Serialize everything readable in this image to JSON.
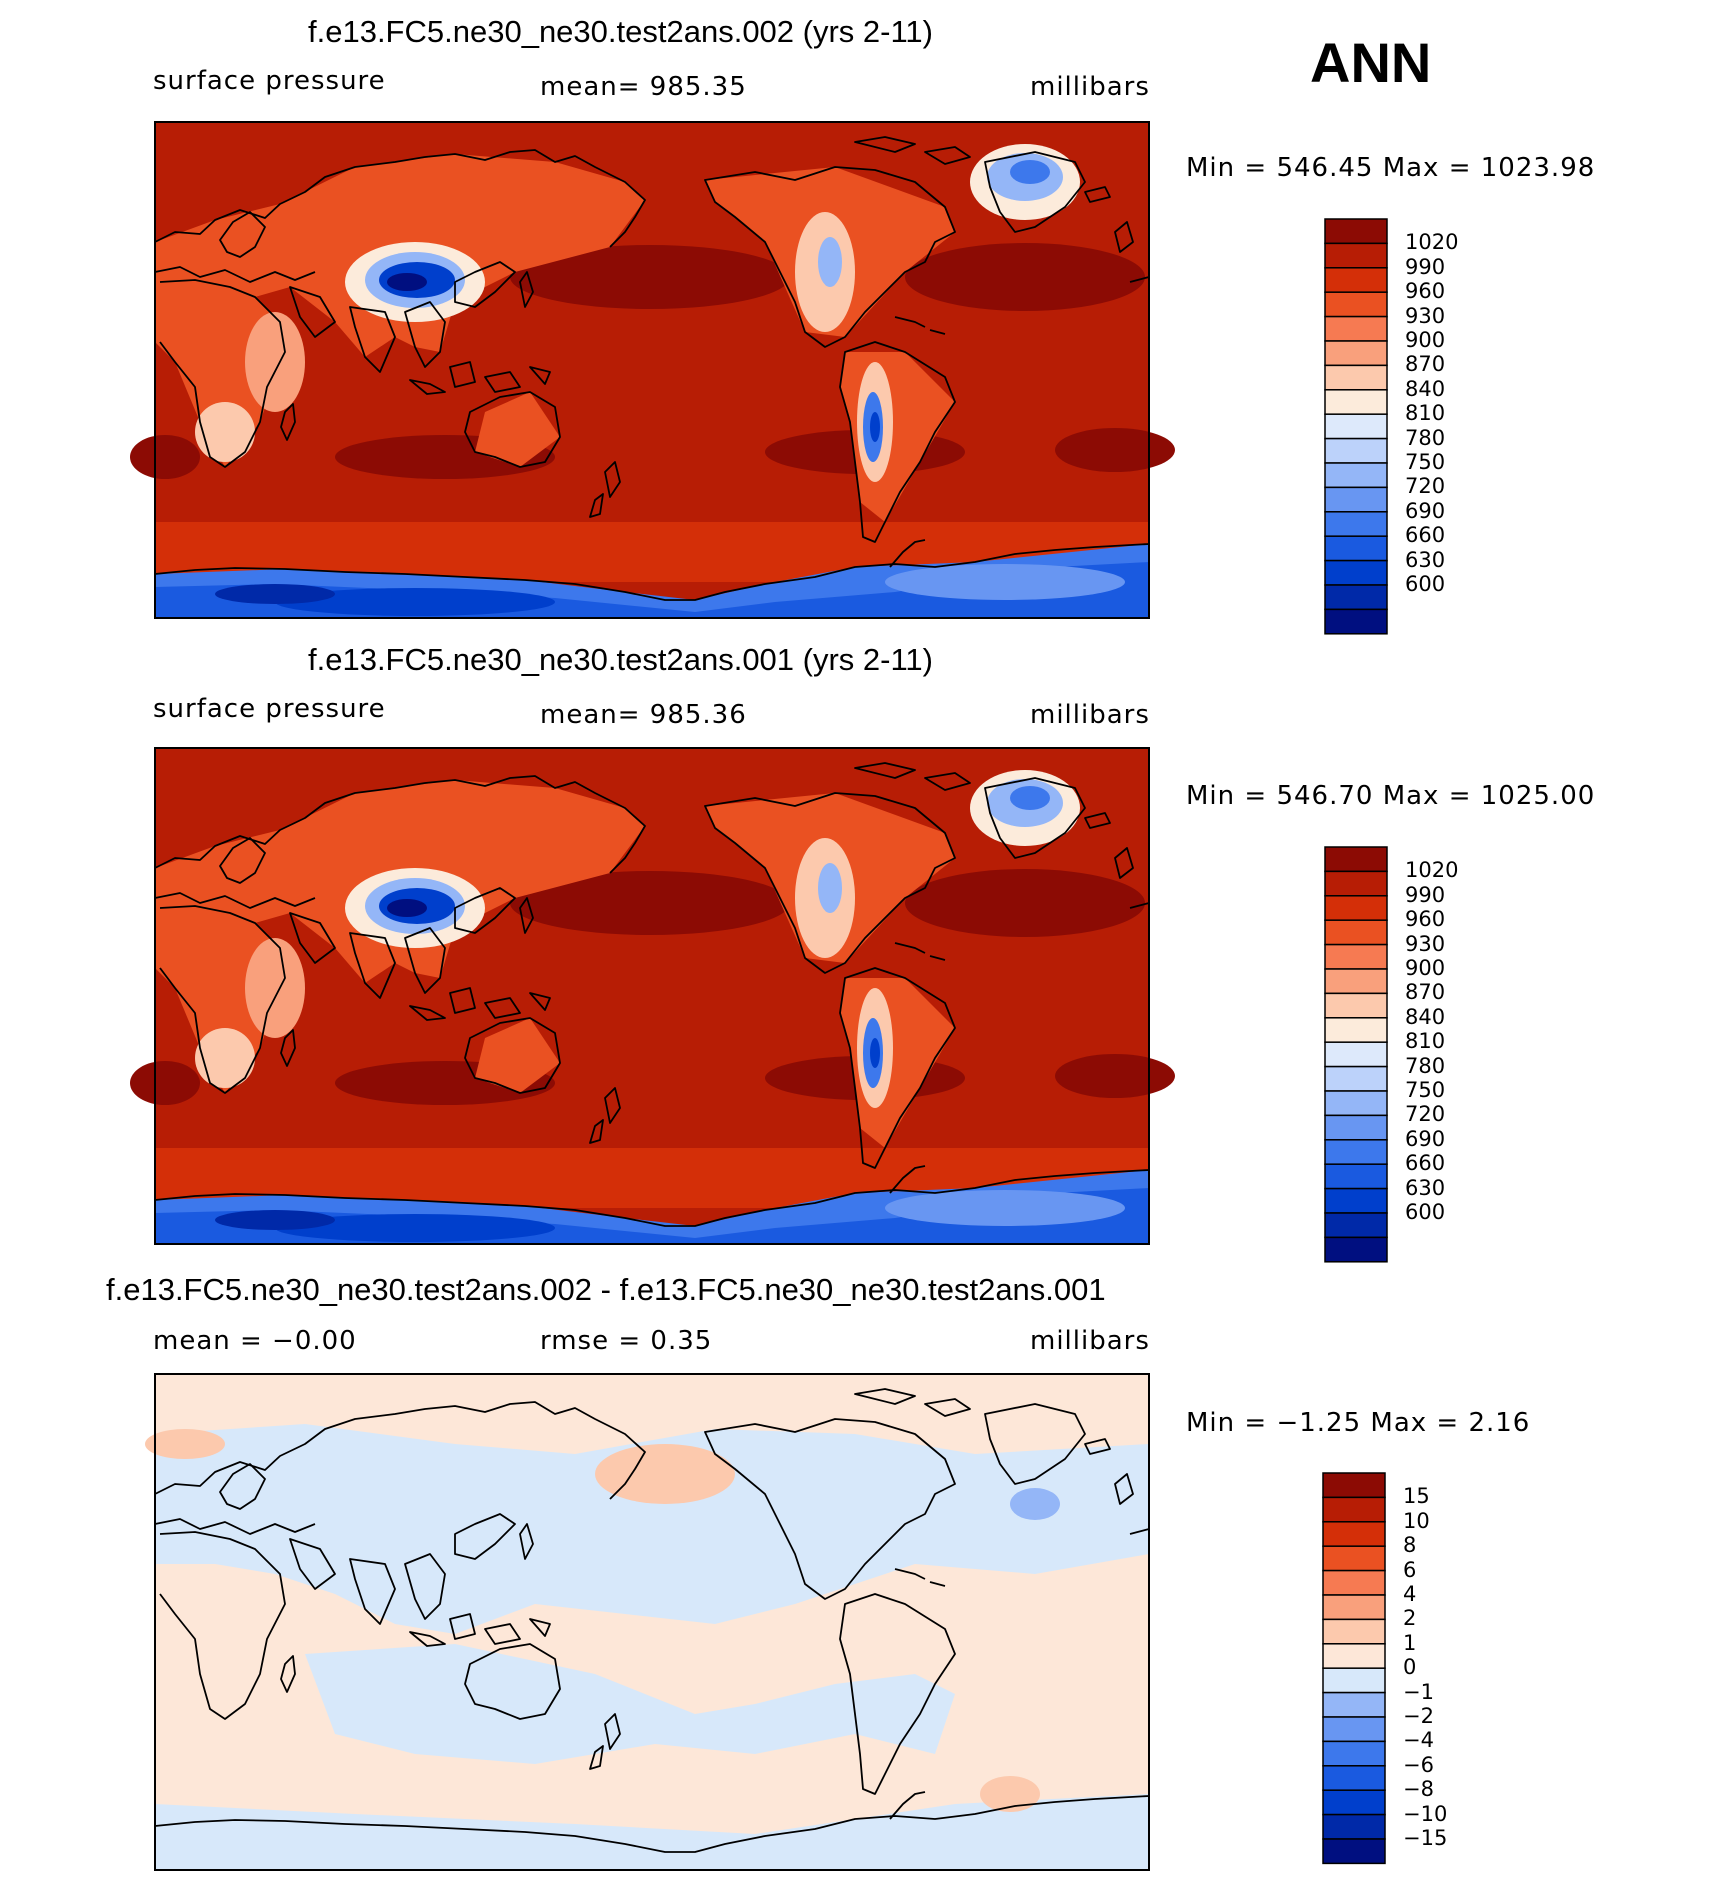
{
  "season": "ANN",
  "palettes": {
    "abs": [
      "#000f80",
      "#0029a8",
      "#003fcc",
      "#1a5ae0",
      "#3d78ec",
      "#6896f2",
      "#94b6f7",
      "#bcd2fa",
      "#dde9fb",
      "#fcebdb",
      "#fcc9ad",
      "#f9a07c",
      "#f67a52",
      "#ea5122",
      "#d42f08",
      "#b71d05",
      "#8c0b04"
    ],
    "diff": [
      "#000f80",
      "#0029a8",
      "#003fcc",
      "#1a5ae0",
      "#3d78ec",
      "#6896f2",
      "#94b6f7",
      "#d7e8fa",
      "#fde7d8",
      "#fcc9ad",
      "#f9a07c",
      "#f67a52",
      "#ea5122",
      "#d42f08",
      "#b71d05",
      "#8c0b04"
    ]
  },
  "chart_data": [
    {
      "type": "heatmap",
      "title": "f.e13.FC5.ne30_ne30.test2ans.002 (yrs 2-11)",
      "variable": "surface pressure",
      "stat_text": "mean=  985.35",
      "units": "millibars",
      "minmax_text": "Min  =  546.45  Max  =  1023.98",
      "colorbar_levels": [
        "1020",
        "990",
        "960",
        "930",
        "900",
        "870",
        "840",
        "810",
        "780",
        "750",
        "720",
        "690",
        "660",
        "630",
        "600"
      ]
    },
    {
      "type": "heatmap",
      "title": "f.e13.FC5.ne30_ne30.test2ans.001 (yrs 2-11)",
      "variable": "surface pressure",
      "stat_text": "mean=  985.36",
      "units": "millibars",
      "minmax_text": "Min  =  546.70  Max  =  1025.00",
      "colorbar_levels": [
        "1020",
        "990",
        "960",
        "930",
        "900",
        "870",
        "840",
        "810",
        "780",
        "750",
        "720",
        "690",
        "660",
        "630",
        "600"
      ]
    },
    {
      "type": "heatmap",
      "title": "f.e13.FC5.ne30_ne30.test2ans.002 - f.e13.FC5.ne30_ne30.test2ans.001",
      "variable": "mean  =   −0.00",
      "stat_text": "rmse  =     0.35",
      "units": "millibars",
      "minmax_text": "Min  =   −1.25  Max  =     2.16",
      "colorbar_levels": [
        "15",
        "10",
        "8",
        "6",
        "4",
        "2",
        "1",
        "0",
        "−1",
        "−2",
        "−4",
        "−6",
        "−8",
        "−10",
        "−15"
      ]
    }
  ]
}
